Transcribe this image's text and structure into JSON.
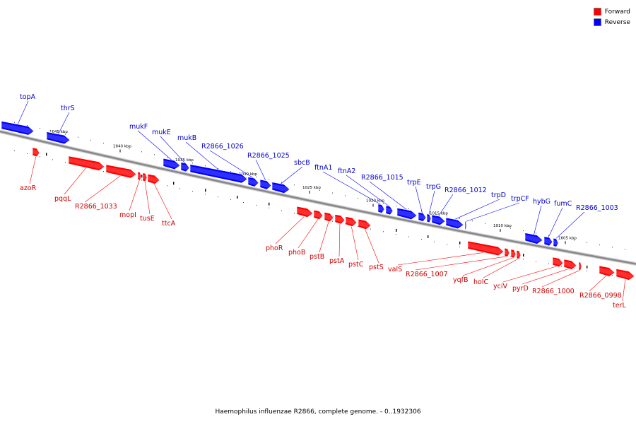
{
  "legend": {
    "forward": {
      "label": "Forward",
      "color": "#ff0000"
    },
    "reverse": {
      "label": "Reverse",
      "color": "#0000ff"
    }
  },
  "footer": "Haemophilus influenzae R2866, complete genome. - 0..1932306",
  "colors": {
    "forward": "#ff0000",
    "reverse": "#0000ff",
    "forward_label": "#cc0000",
    "reverse_label": "#0000cc",
    "backbone": "#888888"
  },
  "scale": {
    "unit": "kbp",
    "ticks": [
      "1045 kbp",
      "1040 kbp",
      "1035 kbp",
      "1030 kbp",
      "1025 kbp",
      "1020 kbp",
      "1015 kbp",
      "1010 kbp",
      "1005 kbp"
    ]
  },
  "genes": {
    "reverse": [
      "topA",
      "thrS",
      "mukF",
      "mukE",
      "mukB",
      "R2866_1026",
      "R2866_1025",
      "sbcB",
      "ftnA1",
      "ftnA2",
      "R2866_1015",
      "trpE",
      "trpG",
      "R2866_1012",
      "trpD",
      "trpCF",
      "hybG",
      "fumC",
      "R2866_1003"
    ],
    "forward": [
      "azoR",
      "pqqL",
      "R2866_1033",
      "mopI",
      "tusE",
      "ttcA",
      "phoR",
      "phoB",
      "pstB",
      "pstA",
      "pstC",
      "pstS",
      "valS",
      "R2866_1007",
      "yqfB",
      "holC",
      "yciV",
      "pyrD",
      "R2866_1000",
      "R2866_0998",
      "terL"
    ]
  }
}
